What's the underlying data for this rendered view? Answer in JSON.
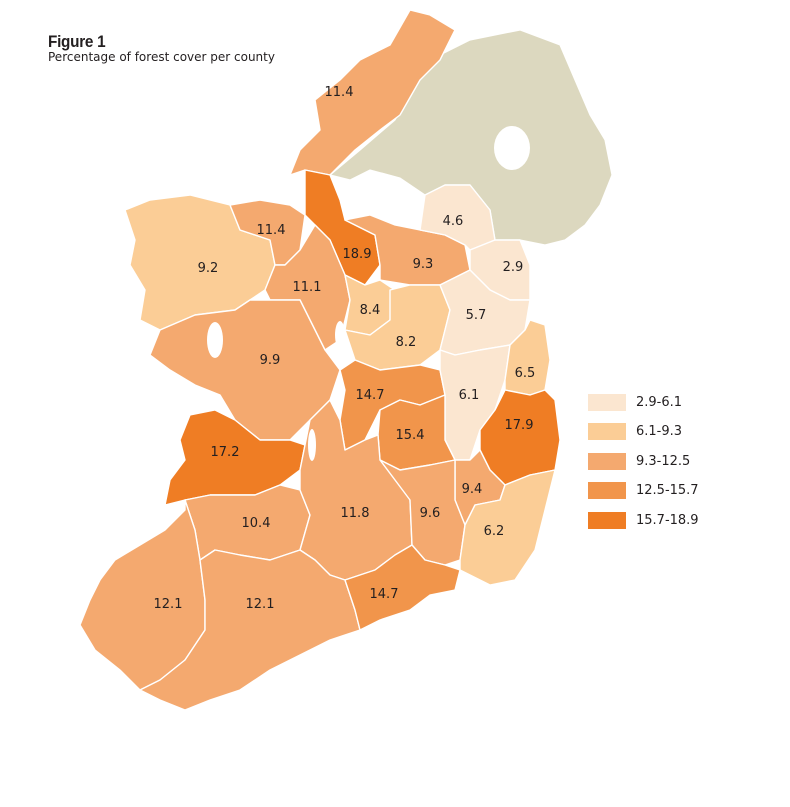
{
  "figure": {
    "title": "Figure 1",
    "subtitle": "Percentage of forest cover per county"
  },
  "colors": {
    "class1": "#fbe6d0",
    "class2": "#fbcd96",
    "class3": "#f4a96f",
    "class4": "#f1954b",
    "class5": "#ef7d24",
    "northern_ireland": "#dcd8bf"
  },
  "legend": [
    {
      "label": "2.9-6.1",
      "class": "class1"
    },
    {
      "label": "6.1-9.3",
      "class": "class2"
    },
    {
      "label": "9.3-12.5",
      "class": "class3"
    },
    {
      "label": "12.5-15.7",
      "class": "class4"
    },
    {
      "label": "15.7-18.9",
      "class": "class5"
    }
  ],
  "counties": [
    {
      "id": "donegal",
      "value": "11.4",
      "class": "class3"
    },
    {
      "id": "mayo",
      "value": "9.2",
      "class": "class2"
    },
    {
      "id": "sligo",
      "value": "11.4",
      "class": "class3"
    },
    {
      "id": "leitrim",
      "value": "18.9",
      "class": "class5"
    },
    {
      "id": "cavan",
      "value": "9.3",
      "class": "class3"
    },
    {
      "id": "monaghan",
      "value": "4.6",
      "class": "class1"
    },
    {
      "id": "louth",
      "value": "2.9",
      "class": "class1"
    },
    {
      "id": "roscommon",
      "value": "11.1",
      "class": "class3"
    },
    {
      "id": "longford",
      "value": "8.4",
      "class": "class2"
    },
    {
      "id": "westmeath",
      "value": "8.2",
      "class": "class2"
    },
    {
      "id": "meath",
      "value": "5.7",
      "class": "class1"
    },
    {
      "id": "galway",
      "value": "9.9",
      "class": "class3"
    },
    {
      "id": "offaly",
      "value": "14.7",
      "class": "class4"
    },
    {
      "id": "kildare",
      "value": "6.1",
      "class": "class1"
    },
    {
      "id": "dublin",
      "value": "6.5",
      "class": "class2"
    },
    {
      "id": "clare",
      "value": "17.2",
      "class": "class5"
    },
    {
      "id": "laois",
      "value": "15.4",
      "class": "class4"
    },
    {
      "id": "wicklow",
      "value": "17.9",
      "class": "class5"
    },
    {
      "id": "carlow",
      "value": "9.4",
      "class": "class3"
    },
    {
      "id": "limerick",
      "value": "10.4",
      "class": "class3"
    },
    {
      "id": "tipperary",
      "value": "11.8",
      "class": "class3"
    },
    {
      "id": "kilkenny",
      "value": "9.6",
      "class": "class3"
    },
    {
      "id": "wexford",
      "value": "6.2",
      "class": "class2"
    },
    {
      "id": "kerry",
      "value": "12.1",
      "class": "class3"
    },
    {
      "id": "cork",
      "value": "12.1",
      "class": "class3"
    },
    {
      "id": "waterford",
      "value": "14.7",
      "class": "class4"
    }
  ]
}
